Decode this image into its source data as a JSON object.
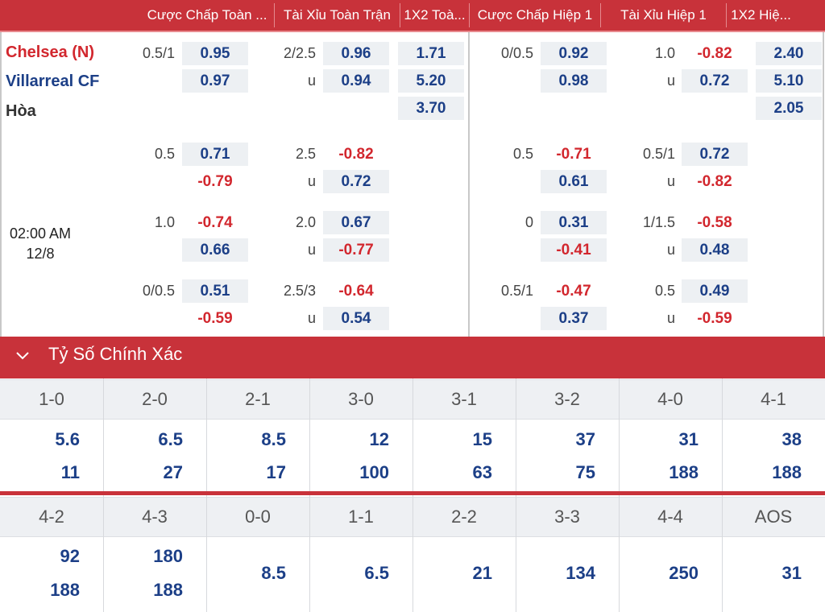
{
  "headers": [
    "Cược Chấp Toàn ...",
    "Tài Xỉu Toàn Trận",
    "1X2 Toà...",
    "Cược Chấp Hiệp 1",
    "Tài Xỉu Hiệp 1",
    "1X2 Hiệ..."
  ],
  "match": {
    "home": "Chelsea (N)",
    "away": "Villarreal CF",
    "draw": "Hòa",
    "time": "02:00 AM",
    "date": "12/8"
  },
  "odds_rows": [
    {
      "ft_hdp_line": "0.5/1",
      "ft_hdp": [
        "0.95",
        "0.97"
      ],
      "ft_ou_line": "2/2.5",
      "ft_ou_u": "u",
      "ft_ou": [
        "0.96",
        "0.94"
      ],
      "ft_1x2": [
        "1.71",
        "5.20",
        "3.70"
      ],
      "h1_hdp_line": "0/0.5",
      "h1_hdp": [
        "0.92",
        "0.98"
      ],
      "h1_ou_line": "1.0",
      "h1_ou_u": "u",
      "h1_ou": [
        "-0.82",
        "0.72"
      ],
      "h1_1x2": [
        "2.40",
        "5.10",
        "2.05"
      ]
    },
    {
      "ft_hdp_line": "0.5",
      "ft_hdp": [
        "0.71",
        "-0.79"
      ],
      "ft_ou_line": "2.5",
      "ft_ou_u": "u",
      "ft_ou": [
        "-0.82",
        "0.72"
      ],
      "h1_hdp_line": "0.5",
      "h1_hdp": [
        "-0.71",
        "0.61"
      ],
      "h1_ou_line": "0.5/1",
      "h1_ou_u": "u",
      "h1_ou": [
        "0.72",
        "-0.82"
      ]
    },
    {
      "ft_hdp_line": "1.0",
      "ft_hdp": [
        "-0.74",
        "0.66"
      ],
      "ft_ou_line": "2.0",
      "ft_ou_u": "u",
      "ft_ou": [
        "0.67",
        "-0.77"
      ],
      "h1_hdp_line": "0",
      "h1_hdp": [
        "0.31",
        "-0.41"
      ],
      "h1_ou_line": "1/1.5",
      "h1_ou_u": "u",
      "h1_ou": [
        "-0.58",
        "0.48"
      ]
    },
    {
      "ft_hdp_line": "0/0.5",
      "ft_hdp": [
        "0.51",
        "-0.59"
      ],
      "ft_ou_line": "2.5/3",
      "ft_ou_u": "u",
      "ft_ou": [
        "-0.64",
        "0.54"
      ],
      "h1_hdp_line": "0.5/1",
      "h1_hdp": [
        "-0.47",
        "0.37"
      ],
      "h1_ou_line": "0.5",
      "h1_ou_u": "u",
      "h1_ou": [
        "0.49",
        "-0.59"
      ]
    }
  ],
  "correct_score": {
    "title": "Tỷ Số Chính Xác",
    "block1": [
      {
        "score": "1-0",
        "values": [
          "5.6",
          "11"
        ]
      },
      {
        "score": "2-0",
        "values": [
          "6.5",
          "27"
        ]
      },
      {
        "score": "2-1",
        "values": [
          "8.5",
          "17"
        ]
      },
      {
        "score": "3-0",
        "values": [
          "12",
          "100"
        ]
      },
      {
        "score": "3-1",
        "values": [
          "15",
          "63"
        ]
      },
      {
        "score": "3-2",
        "values": [
          "37",
          "75"
        ]
      },
      {
        "score": "4-0",
        "values": [
          "31",
          "188"
        ]
      },
      {
        "score": "4-1",
        "values": [
          "38",
          "188"
        ]
      }
    ],
    "block2": [
      {
        "score": "4-2",
        "values": [
          "92",
          "188"
        ]
      },
      {
        "score": "4-3",
        "values": [
          "180",
          "188"
        ]
      },
      {
        "score": "0-0",
        "values": [
          "8.5"
        ]
      },
      {
        "score": "1-1",
        "values": [
          "6.5"
        ]
      },
      {
        "score": "2-2",
        "values": [
          "21"
        ]
      },
      {
        "score": "3-3",
        "values": [
          "134"
        ]
      },
      {
        "score": "4-4",
        "values": [
          "250"
        ]
      },
      {
        "score": "AOS",
        "values": [
          "31"
        ]
      }
    ]
  },
  "colors": {
    "accent": "#c8323a",
    "positive": "#1c3f87",
    "negative": "#d2272e",
    "cell_bg": "#edf0f3"
  }
}
